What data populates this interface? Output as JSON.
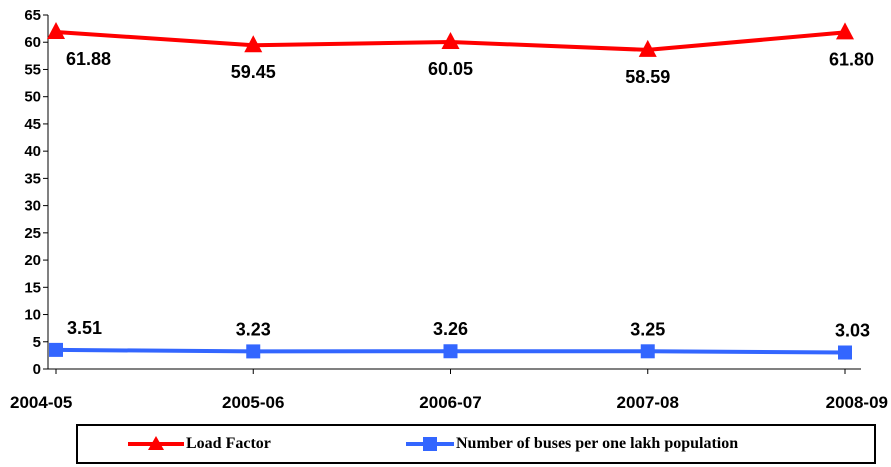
{
  "chart_data": {
    "type": "line",
    "categories": [
      "2004-05",
      "2005-06",
      "2006-07",
      "2007-08",
      "2008-09"
    ],
    "series": [
      {
        "name": "Load Factor",
        "values": [
          61.88,
          59.45,
          60.05,
          58.59,
          61.8
        ],
        "labels": [
          "61.88",
          "59.45",
          "60.05",
          "58.59",
          "61.80"
        ],
        "color": "#ff0000",
        "marker": "triangle"
      },
      {
        "name": "Number of buses per one lakh population",
        "values": [
          3.51,
          3.23,
          3.26,
          3.25,
          3.03
        ],
        "labels": [
          "3.51",
          "3.23",
          "3.26",
          "3.25",
          "3.03"
        ],
        "color": "#3366ff",
        "marker": "square"
      }
    ],
    "yticks": [
      0,
      5,
      10,
      15,
      20,
      25,
      30,
      35,
      40,
      45,
      50,
      55,
      60,
      65
    ],
    "ylim": [
      0,
      65
    ],
    "grid": false,
    "legend_position": "bottom"
  }
}
